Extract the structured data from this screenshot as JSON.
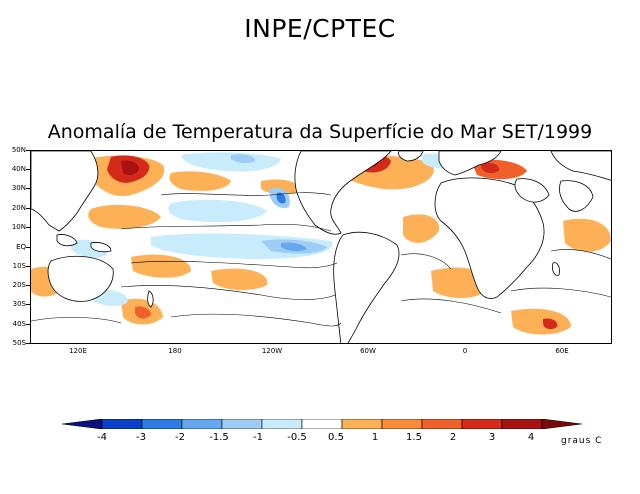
{
  "header": {
    "text": "INPE/CPTEC"
  },
  "title": {
    "text": "Anomalía de Temperatura da Superfície do Mar SET/1999"
  },
  "map": {
    "lat_labels": [
      "50N",
      "40N",
      "30N",
      "20N",
      "10N",
      "EQ",
      "10S",
      "20S",
      "30S",
      "40S",
      "50S"
    ],
    "lon_labels": [
      "120E",
      "180",
      "120W",
      "60W",
      "0",
      "60E"
    ],
    "land_color": "#ffffff",
    "contour_color": "#000000"
  },
  "legend": {
    "labels": [
      "-4",
      "-3",
      "-2",
      "-1.5",
      "-1",
      "-0.5",
      "0.5",
      "1",
      "1.5",
      "2",
      "3",
      "4"
    ],
    "colors": [
      "#08107e",
      "#0a3fc8",
      "#2d7ce6",
      "#64a8ef",
      "#9dcdf5",
      "#c8ecfb",
      "#ffffff",
      "#fdb055",
      "#fd8c3a",
      "#f0612a",
      "#d42a1a",
      "#a81212",
      "#7a0a0a"
    ],
    "units": "graus C"
  }
}
